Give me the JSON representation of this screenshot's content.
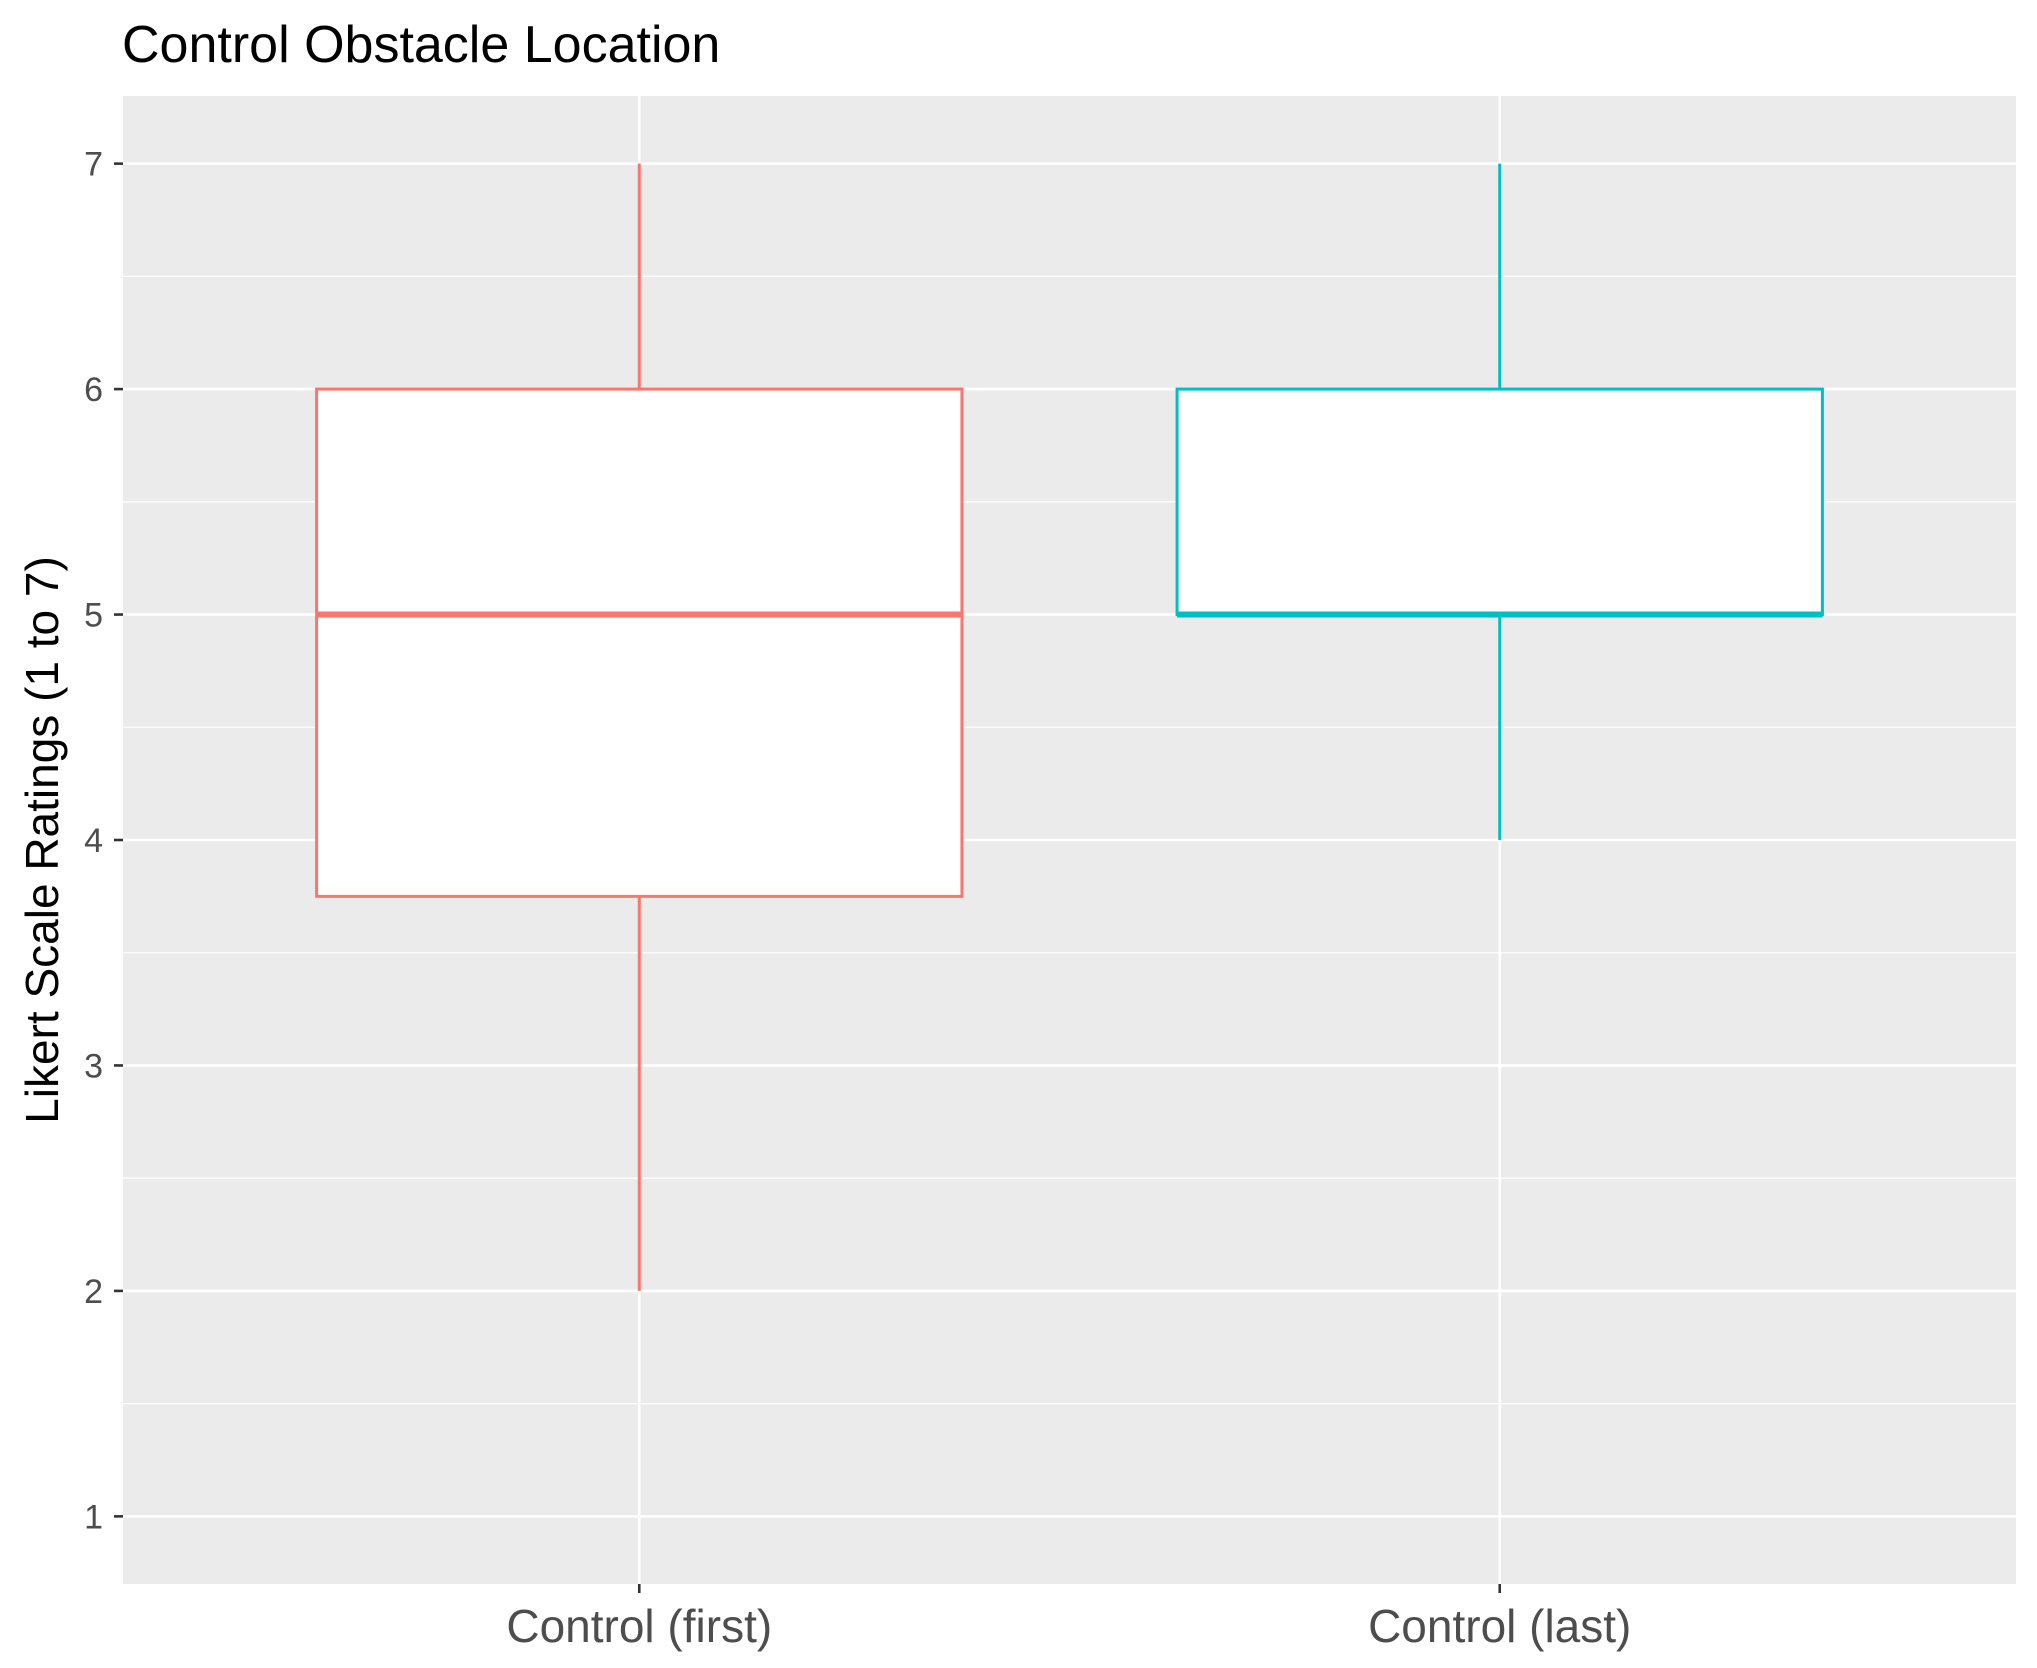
{
  "chart_data": {
    "type": "boxplot",
    "title": "Control Obstacle Location",
    "ylabel": "Likert Scale Ratings (1 to 7)",
    "xlabel": "",
    "ylim": [
      0.7,
      7.3
    ],
    "yticks": [
      1,
      2,
      3,
      4,
      5,
      6,
      7
    ],
    "grid": true,
    "background": "#ebebeb",
    "categories": [
      "Control (first)",
      "Control (last)"
    ],
    "boxes": [
      {
        "category": "Control (first)",
        "min": 2,
        "q1": 3.75,
        "median": 5,
        "q3": 6,
        "max": 7,
        "color": "#f8766d"
      },
      {
        "category": "Control (last)",
        "min": 4,
        "q1": 5,
        "median": 5,
        "q3": 6,
        "max": 7,
        "color": "#00bfc4"
      }
    ]
  }
}
